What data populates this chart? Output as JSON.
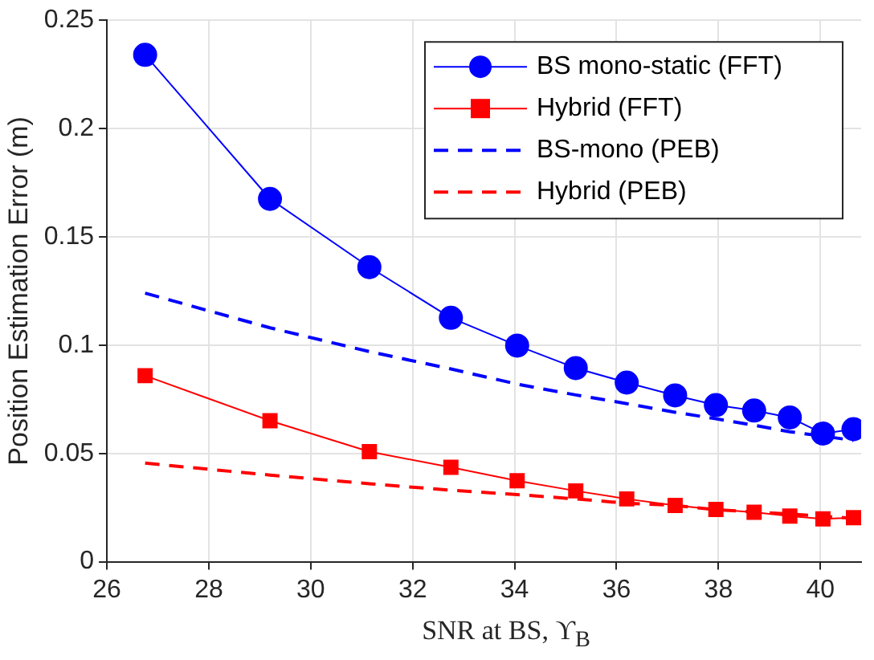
{
  "chart_data": {
    "type": "line",
    "xlabel": "SNR at BS, ϒ$_{B}$",
    "ylabel": "Position Estimation Error (m)",
    "xlim": [
      26,
      40.8
    ],
    "xticks": [
      26,
      28,
      30,
      32,
      34,
      36,
      38,
      40
    ],
    "ylim": [
      0,
      0.25
    ],
    "yticks": [
      0,
      0.05,
      0.1,
      0.15,
      0.2,
      0.25
    ],
    "grid": true,
    "legend": "top right",
    "x": [
      26.75,
      29.2,
      31.15,
      32.75,
      34.05,
      35.2,
      36.2,
      37.15,
      37.95,
      38.7,
      39.4,
      40.05,
      40.65
    ],
    "series": [
      {
        "name": "BS mono-static (FFT)",
        "color": "#0000ff",
        "marker": "circle",
        "line_style": "solid",
        "values": [
          0.234,
          0.1675,
          0.136,
          0.1126,
          0.0998,
          0.0894,
          0.0827,
          0.0768,
          0.0723,
          0.0698,
          0.0666,
          0.0592,
          0.0612
        ]
      },
      {
        "name": "Hybrid (FFT)",
        "color": "#ff0000",
        "marker": "square",
        "line_style": "solid",
        "values": [
          0.0859,
          0.0651,
          0.0508,
          0.0436,
          0.0374,
          0.0327,
          0.029,
          0.026,
          0.0241,
          0.0228,
          0.0211,
          0.0198,
          0.0203
        ]
      },
      {
        "name": "BS-mono (PEB)",
        "color": "#0000ff",
        "marker": "none",
        "line_style": "dashed",
        "values": [
          0.124,
          0.108,
          0.097,
          0.089,
          0.082,
          0.077,
          0.073,
          0.069,
          0.066,
          0.063,
          0.06,
          0.058,
          0.056
        ]
      },
      {
        "name": "Hybrid (PEB)",
        "color": "#ff0000",
        "marker": "none",
        "line_style": "dashed",
        "values": [
          0.0455,
          0.04,
          0.036,
          0.033,
          0.031,
          0.029,
          0.027,
          0.026,
          0.024,
          0.023,
          0.022,
          0.021,
          0.02
        ]
      }
    ]
  }
}
